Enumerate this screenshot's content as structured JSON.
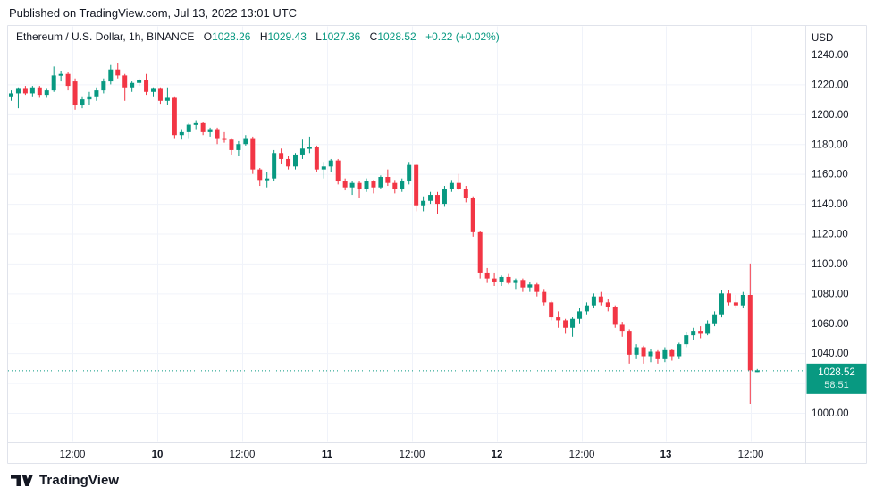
{
  "page": {
    "published_caption": "Published on TradingView.com, Jul 13, 2022 13:01 UTC"
  },
  "footer": {
    "brand": "TradingView"
  },
  "chart_data": {
    "type": "candlestick",
    "legend": {
      "symbol_title": "Ethereum / U.S. Dollar, 1h, BINANCE",
      "open_label": "O",
      "open_value": "1028.26",
      "high_label": "H",
      "high_value": "1029.43",
      "low_label": "L",
      "low_value": "1027.36",
      "close_label": "C",
      "close_value": "1028.52",
      "change_text": "+0.22 (+0.02%)"
    },
    "price_axis": {
      "currency_label": "USD",
      "range": {
        "min": 1000,
        "max": 1240
      },
      "grid_step": 20,
      "labels": [
        {
          "price": 1240,
          "text": "1240.00"
        },
        {
          "price": 1220,
          "text": "1220.00"
        },
        {
          "price": 1200,
          "text": "1200.00"
        },
        {
          "price": 1180,
          "text": "1180.00"
        },
        {
          "price": 1160,
          "text": "1160.00"
        },
        {
          "price": 1140,
          "text": "1140.00"
        },
        {
          "price": 1120,
          "text": "1120.00"
        },
        {
          "price": 1100,
          "text": "1100.00"
        },
        {
          "price": 1080,
          "text": "1080.00"
        },
        {
          "price": 1060,
          "text": "1060.00"
        },
        {
          "price": 1040,
          "text": "1040.00"
        },
        {
          "price": 1000,
          "text": "1000.00"
        }
      ]
    },
    "last_price_label": {
      "price": 1028.52,
      "price_text": "1028.52",
      "countdown": "58:51"
    },
    "time_axis": {
      "ticks": [
        {
          "text": "12:00",
          "bold": false
        },
        {
          "text": "10",
          "bold": true
        },
        {
          "text": "12:00",
          "bold": false
        },
        {
          "text": "11",
          "bold": true
        },
        {
          "text": "12:00",
          "bold": false
        },
        {
          "text": "12",
          "bold": true
        },
        {
          "text": "12:00",
          "bold": false
        },
        {
          "text": "13",
          "bold": true
        },
        {
          "text": "12:00",
          "bold": false
        }
      ]
    },
    "colors": {
      "up": "#089981",
      "down": "#f23645",
      "grid": "#f0f3fa",
      "frame": "#e0e3eb",
      "axis_text": "#131722",
      "label_text": "#ffffff"
    },
    "candles": [
      [
        1212,
        1216,
        1209,
        1214
      ],
      [
        1214,
        1218,
        1204,
        1217
      ],
      [
        1217,
        1219,
        1213,
        1214
      ],
      [
        1214,
        1219,
        1212,
        1218
      ],
      [
        1218,
        1219,
        1211,
        1213
      ],
      [
        1213,
        1217,
        1211,
        1216
      ],
      [
        1216,
        1232,
        1215,
        1226
      ],
      [
        1226,
        1229,
        1222,
        1227
      ],
      [
        1227,
        1228,
        1216,
        1219
      ],
      [
        1222,
        1224,
        1203,
        1206
      ],
      [
        1206,
        1212,
        1204,
        1210
      ],
      [
        1210,
        1215,
        1206,
        1212
      ],
      [
        1212,
        1218,
        1209,
        1216
      ],
      [
        1216,
        1224,
        1214,
        1222
      ],
      [
        1222,
        1233,
        1220,
        1230
      ],
      [
        1230,
        1234,
        1224,
        1226
      ],
      [
        1226,
        1227,
        1209,
        1218
      ],
      [
        1218,
        1222,
        1215,
        1221
      ],
      [
        1221,
        1224,
        1219,
        1223
      ],
      [
        1223,
        1227,
        1213,
        1215
      ],
      [
        1215,
        1218,
        1212,
        1217
      ],
      [
        1217,
        1218,
        1207,
        1209
      ],
      [
        1209,
        1218,
        1206,
        1211
      ],
      [
        1211,
        1212,
        1184,
        1186
      ],
      [
        1186,
        1190,
        1183,
        1188
      ],
      [
        1188,
        1194,
        1184,
        1193
      ],
      [
        1193,
        1196,
        1190,
        1194
      ],
      [
        1194,
        1195,
        1186,
        1188
      ],
      [
        1188,
        1191,
        1185,
        1190
      ],
      [
        1190,
        1191,
        1180,
        1184
      ],
      [
        1184,
        1188,
        1181,
        1183
      ],
      [
        1183,
        1184,
        1173,
        1176
      ],
      [
        1176,
        1182,
        1172,
        1180
      ],
      [
        1180,
        1186,
        1179,
        1184
      ],
      [
        1184,
        1185,
        1160,
        1163
      ],
      [
        1163,
        1164,
        1152,
        1156
      ],
      [
        1156,
        1161,
        1151,
        1157
      ],
      [
        1157,
        1176,
        1155,
        1174
      ],
      [
        1174,
        1177,
        1167,
        1170
      ],
      [
        1170,
        1172,
        1163,
        1165
      ],
      [
        1165,
        1174,
        1163,
        1173
      ],
      [
        1173,
        1183,
        1170,
        1177
      ],
      [
        1177,
        1185,
        1174,
        1178
      ],
      [
        1178,
        1179,
        1161,
        1163
      ],
      [
        1163,
        1168,
        1157,
        1165
      ],
      [
        1165,
        1170,
        1161,
        1169
      ],
      [
        1169,
        1170,
        1153,
        1155
      ],
      [
        1155,
        1157,
        1149,
        1151
      ],
      [
        1151,
        1155,
        1146,
        1154
      ],
      [
        1154,
        1155,
        1144,
        1150
      ],
      [
        1150,
        1157,
        1148,
        1155
      ],
      [
        1155,
        1156,
        1147,
        1151
      ],
      [
        1151,
        1159,
        1150,
        1158
      ],
      [
        1158,
        1163,
        1152,
        1154
      ],
      [
        1154,
        1156,
        1147,
        1150
      ],
      [
        1150,
        1157,
        1148,
        1155
      ],
      [
        1155,
        1168,
        1153,
        1166
      ],
      [
        1166,
        1167,
        1135,
        1139
      ],
      [
        1139,
        1145,
        1135,
        1142
      ],
      [
        1142,
        1148,
        1140,
        1146
      ],
      [
        1146,
        1148,
        1133,
        1140
      ],
      [
        1140,
        1152,
        1138,
        1150
      ],
      [
        1150,
        1156,
        1148,
        1154
      ],
      [
        1154,
        1160,
        1149,
        1150
      ],
      [
        1150,
        1152,
        1141,
        1144
      ],
      [
        1144,
        1145,
        1118,
        1121
      ],
      [
        1121,
        1122,
        1090,
        1094
      ],
      [
        1094,
        1097,
        1087,
        1090
      ],
      [
        1090,
        1094,
        1085,
        1088
      ],
      [
        1088,
        1092,
        1085,
        1091
      ],
      [
        1091,
        1093,
        1086,
        1087
      ],
      [
        1087,
        1090,
        1083,
        1089
      ],
      [
        1089,
        1090,
        1081,
        1084
      ],
      [
        1084,
        1088,
        1081,
        1086
      ],
      [
        1086,
        1087,
        1078,
        1081
      ],
      [
        1081,
        1083,
        1072,
        1074
      ],
      [
        1074,
        1075,
        1062,
        1064
      ],
      [
        1064,
        1068,
        1057,
        1062
      ],
      [
        1062,
        1063,
        1053,
        1057
      ],
      [
        1057,
        1064,
        1051,
        1063
      ],
      [
        1063,
        1070,
        1060,
        1068
      ],
      [
        1068,
        1074,
        1066,
        1072
      ],
      [
        1072,
        1080,
        1070,
        1078
      ],
      [
        1078,
        1081,
        1072,
        1074
      ],
      [
        1074,
        1076,
        1068,
        1071
      ],
      [
        1071,
        1072,
        1057,
        1059
      ],
      [
        1059,
        1061,
        1051,
        1055
      ],
      [
        1055,
        1056,
        1033,
        1039
      ],
      [
        1039,
        1046,
        1036,
        1044
      ],
      [
        1044,
        1045,
        1033,
        1038
      ],
      [
        1038,
        1043,
        1034,
        1041
      ],
      [
        1041,
        1042,
        1033,
        1036
      ],
      [
        1036,
        1044,
        1034,
        1042
      ],
      [
        1042,
        1043,
        1035,
        1038
      ],
      [
        1038,
        1047,
        1036,
        1046
      ],
      [
        1046,
        1054,
        1044,
        1052
      ],
      [
        1052,
        1057,
        1049,
        1055
      ],
      [
        1055,
        1058,
        1050,
        1053
      ],
      [
        1053,
        1062,
        1052,
        1060
      ],
      [
        1060,
        1068,
        1058,
        1066
      ],
      [
        1066,
        1082,
        1064,
        1080
      ],
      [
        1080,
        1082,
        1072,
        1074
      ],
      [
        1074,
        1079,
        1070,
        1072
      ],
      [
        1072,
        1081,
        1070,
        1079
      ],
      [
        1079,
        1100,
        1006,
        1028.52
      ],
      [
        1028.26,
        1029.43,
        1027.36,
        1028.52
      ]
    ]
  }
}
